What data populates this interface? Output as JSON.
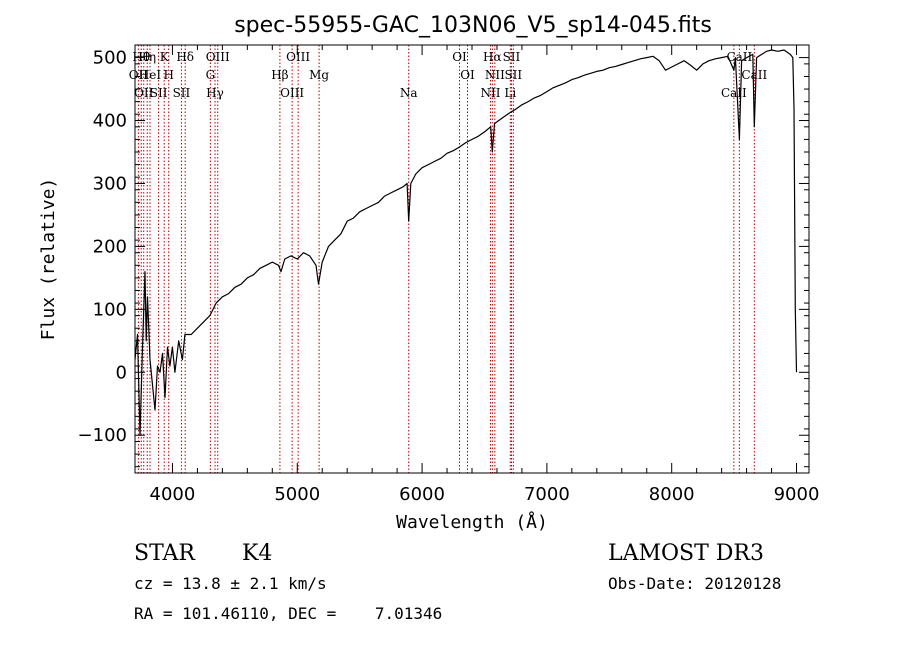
{
  "chart_data": {
    "type": "line",
    "title": "spec-55955-GAC_103N06_V5_sp14-045.fits",
    "xlabel": "Wavelength (Å)",
    "ylabel": "Flux (relative)",
    "xlim": [
      3700,
      9100
    ],
    "ylim": [
      -160,
      520
    ],
    "xticks": [
      4000,
      5000,
      6000,
      7000,
      8000,
      9000
    ],
    "yticks": [
      -100,
      0,
      100,
      200,
      300,
      400,
      500
    ],
    "series": [
      {
        "name": "spectrum",
        "points": [
          [
            3700,
            20
          ],
          [
            3720,
            60
          ],
          [
            3740,
            -100
          ],
          [
            3760,
            40
          ],
          [
            3780,
            160
          ],
          [
            3790,
            50
          ],
          [
            3800,
            120
          ],
          [
            3820,
            20
          ],
          [
            3840,
            -20
          ],
          [
            3860,
            -60
          ],
          [
            3880,
            10
          ],
          [
            3900,
            0
          ],
          [
            3920,
            30
          ],
          [
            3940,
            -40
          ],
          [
            3960,
            40
          ],
          [
            3980,
            10
          ],
          [
            4000,
            40
          ],
          [
            4020,
            0
          ],
          [
            4050,
            50
          ],
          [
            4080,
            20
          ],
          [
            4100,
            60
          ],
          [
            4150,
            60
          ],
          [
            4200,
            70
          ],
          [
            4250,
            80
          ],
          [
            4300,
            90
          ],
          [
            4350,
            110
          ],
          [
            4400,
            120
          ],
          [
            4450,
            125
          ],
          [
            4500,
            135
          ],
          [
            4550,
            140
          ],
          [
            4600,
            150
          ],
          [
            4650,
            155
          ],
          [
            4700,
            165
          ],
          [
            4750,
            170
          ],
          [
            4800,
            175
          ],
          [
            4850,
            170
          ],
          [
            4870,
            160
          ],
          [
            4900,
            180
          ],
          [
            4950,
            185
          ],
          [
            5000,
            180
          ],
          [
            5050,
            190
          ],
          [
            5100,
            185
          ],
          [
            5150,
            170
          ],
          [
            5170,
            140
          ],
          [
            5200,
            175
          ],
          [
            5250,
            200
          ],
          [
            5300,
            210
          ],
          [
            5350,
            220
          ],
          [
            5400,
            240
          ],
          [
            5450,
            245
          ],
          [
            5500,
            255
          ],
          [
            5550,
            260
          ],
          [
            5600,
            265
          ],
          [
            5650,
            270
          ],
          [
            5700,
            280
          ],
          [
            5750,
            285
          ],
          [
            5800,
            290
          ],
          [
            5850,
            295
          ],
          [
            5880,
            300
          ],
          [
            5893,
            240
          ],
          [
            5910,
            300
          ],
          [
            5950,
            315
          ],
          [
            6000,
            325
          ],
          [
            6050,
            330
          ],
          [
            6100,
            335
          ],
          [
            6150,
            340
          ],
          [
            6200,
            348
          ],
          [
            6250,
            352
          ],
          [
            6300,
            358
          ],
          [
            6350,
            365
          ],
          [
            6400,
            370
          ],
          [
            6450,
            375
          ],
          [
            6500,
            382
          ],
          [
            6550,
            390
          ],
          [
            6563,
            350
          ],
          [
            6580,
            395
          ],
          [
            6600,
            398
          ],
          [
            6650,
            405
          ],
          [
            6700,
            412
          ],
          [
            6750,
            418
          ],
          [
            6800,
            425
          ],
          [
            6850,
            430
          ],
          [
            6900,
            436
          ],
          [
            6950,
            440
          ],
          [
            7000,
            446
          ],
          [
            7050,
            452
          ],
          [
            7100,
            456
          ],
          [
            7150,
            460
          ],
          [
            7200,
            465
          ],
          [
            7250,
            468
          ],
          [
            7300,
            472
          ],
          [
            7350,
            475
          ],
          [
            7400,
            478
          ],
          [
            7450,
            480
          ],
          [
            7500,
            484
          ],
          [
            7550,
            486
          ],
          [
            7600,
            489
          ],
          [
            7650,
            492
          ],
          [
            7700,
            495
          ],
          [
            7750,
            498
          ],
          [
            7800,
            500
          ],
          [
            7850,
            502
          ],
          [
            7900,
            495
          ],
          [
            7950,
            480
          ],
          [
            8000,
            485
          ],
          [
            8050,
            490
          ],
          [
            8100,
            495
          ],
          [
            8150,
            488
          ],
          [
            8200,
            480
          ],
          [
            8250,
            490
          ],
          [
            8300,
            495
          ],
          [
            8350,
            498
          ],
          [
            8400,
            500
          ],
          [
            8450,
            502
          ],
          [
            8498,
            480
          ],
          [
            8510,
            500
          ],
          [
            8542,
            370
          ],
          [
            8560,
            495
          ],
          [
            8600,
            500
          ],
          [
            8650,
            505
          ],
          [
            8662,
            390
          ],
          [
            8680,
            500
          ],
          [
            8720,
            505
          ],
          [
            8760,
            510
          ],
          [
            8800,
            512
          ],
          [
            8850,
            510
          ],
          [
            8900,
            512
          ],
          [
            8950,
            505
          ],
          [
            8970,
            500
          ],
          [
            8980,
            420
          ],
          [
            8990,
            100
          ],
          [
            9000,
            0
          ]
        ]
      }
    ],
    "line_markers": [
      {
        "wave": 3750,
        "label": "Hθ"
      },
      {
        "wave": 3727,
        "label": "OII"
      },
      {
        "wave": 3770,
        "label": "OII"
      },
      {
        "wave": 3798,
        "label": "Hη"
      },
      {
        "wave": 3820,
        "label": "HeI"
      },
      {
        "wave": 3889,
        "label": "SII"
      },
      {
        "wave": 3934,
        "label": "K"
      },
      {
        "wave": 3970,
        "label": "H"
      },
      {
        "wave": 4072,
        "label": "SII"
      },
      {
        "wave": 4102,
        "label": "Hδ"
      },
      {
        "wave": 4304,
        "label": "G"
      },
      {
        "wave": 4341,
        "label": "Hγ"
      },
      {
        "wave": 4363,
        "label": "OIII"
      },
      {
        "wave": 4861,
        "label": "Hβ"
      },
      {
        "wave": 4959,
        "label": "OIII"
      },
      {
        "wave": 5007,
        "label": "OIII"
      },
      {
        "wave": 5175,
        "label": "Mg"
      },
      {
        "wave": 5893,
        "label": "Na"
      },
      {
        "wave": 6300,
        "label": "OI"
      },
      {
        "wave": 6364,
        "label": "OI"
      },
      {
        "wave": 6548,
        "label": "NII"
      },
      {
        "wave": 6563,
        "label": "Hα"
      },
      {
        "wave": 6583,
        "label": "NII"
      },
      {
        "wave": 6707,
        "label": "Li"
      },
      {
        "wave": 6716,
        "label": "SII"
      },
      {
        "wave": 6731,
        "label": "SII"
      },
      {
        "wave": 8498,
        "label": "CaII"
      },
      {
        "wave": 8542,
        "label": "CaII"
      },
      {
        "wave": 8662,
        "label": "CaII"
      }
    ]
  },
  "footer": {
    "class_label": "STAR",
    "subclass": "K4",
    "survey": "LAMOST DR3",
    "redshift": "cz = 13.8 ± 2.1 km/s",
    "obs_date": "Obs-Date: 20120128",
    "coords": "RA = 101.46110, DEC =    7.01346"
  },
  "colors": {
    "line": "#000000",
    "marker": "#b00000"
  }
}
